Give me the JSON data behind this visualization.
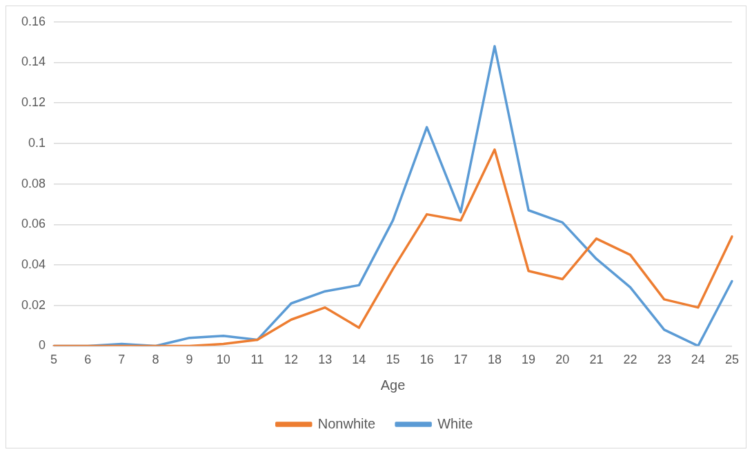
{
  "chart_data": {
    "type": "line",
    "xlabel": "Age",
    "categories": [
      "5",
      "6",
      "7",
      "8",
      "9",
      "10",
      "11",
      "12",
      "13",
      "14",
      "15",
      "16",
      "17",
      "18",
      "19",
      "20",
      "21",
      "22",
      "23",
      "24",
      "25"
    ],
    "series": [
      {
        "name": "Nonwhite",
        "color": "#ed7d31",
        "values": [
          0,
          0,
          0,
          0,
          0,
          0.001,
          0.003,
          0.013,
          0.019,
          0.009,
          0.038,
          0.065,
          0.062,
          0.097,
          0.037,
          0.033,
          0.053,
          0.045,
          0.023,
          0.019,
          0.054
        ]
      },
      {
        "name": "White",
        "color": "#5b9bd5",
        "values": [
          0,
          0,
          0.001,
          0,
          0.004,
          0.005,
          0.003,
          0.021,
          0.027,
          0.03,
          0.062,
          0.108,
          0.066,
          0.148,
          0.067,
          0.061,
          0.043,
          0.029,
          0.008,
          0,
          0.032
        ]
      }
    ],
    "ylim": [
      0,
      0.16
    ],
    "yticks": [
      0,
      0.02,
      0.04,
      0.06,
      0.08,
      0.1,
      0.12,
      0.14,
      0.16
    ],
    "grid": "y",
    "legend": "bottom",
    "marker": "none",
    "line_style": "solid"
  }
}
